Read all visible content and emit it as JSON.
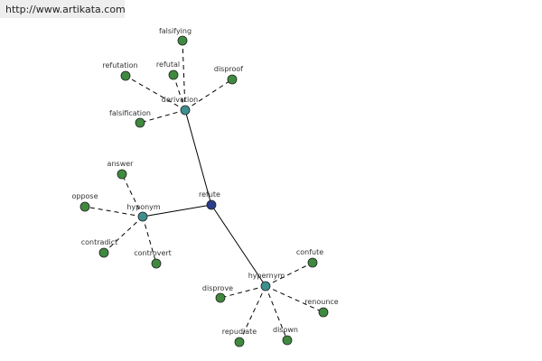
{
  "header": {
    "url": "http://www.artikata.com"
  },
  "nodes": [
    {
      "label": "refute"
    },
    {
      "label": "derivation"
    },
    {
      "label": "hyponym"
    },
    {
      "label": "hypernym"
    },
    {
      "label": "falsifying"
    },
    {
      "label": "refutation"
    },
    {
      "label": "refutal"
    },
    {
      "label": "disproof"
    },
    {
      "label": "falsification"
    },
    {
      "label": "answer"
    },
    {
      "label": "oppose"
    },
    {
      "label": "contradict"
    },
    {
      "label": "controvert"
    },
    {
      "label": "confute"
    },
    {
      "label": "disprove"
    },
    {
      "label": "renounce"
    },
    {
      "label": "repudiate"
    },
    {
      "label": "disown"
    }
  ]
}
